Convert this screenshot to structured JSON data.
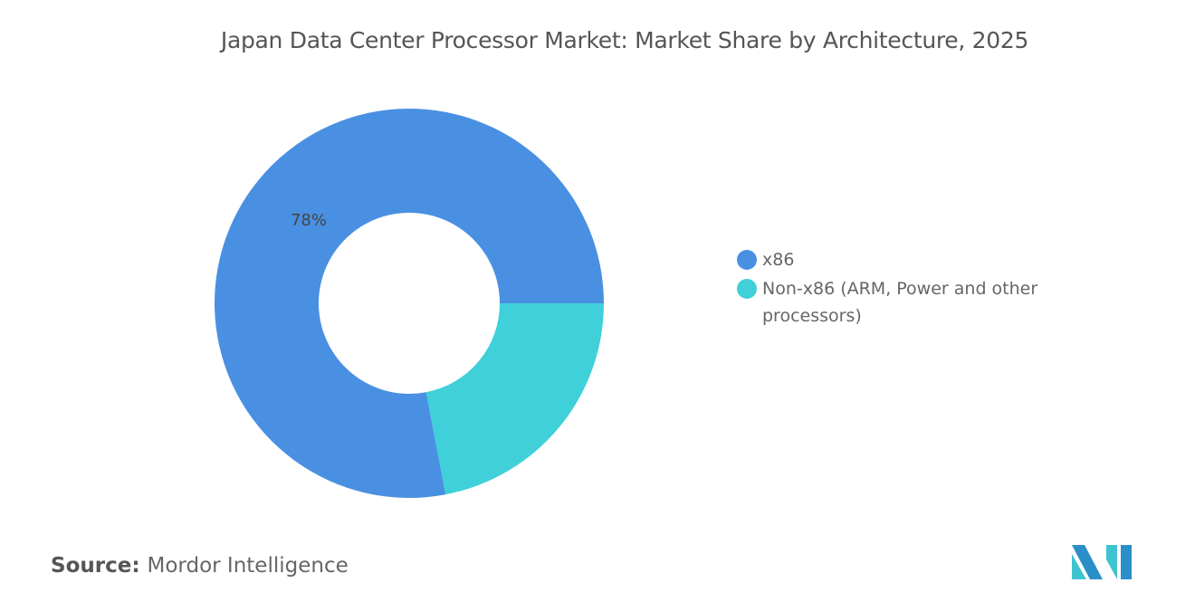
{
  "chart_data": {
    "type": "pie",
    "style": "donut",
    "title": "Japan Data Center Processor Market: Market Share by Architecture, 2025",
    "categories": [
      "x86",
      "Non-x86 (ARM, Power and other processors)"
    ],
    "values": [
      78,
      22
    ],
    "unit": "%",
    "colors": [
      "#4a90e2",
      "#3fd0d9"
    ],
    "data_labels": [
      "78%",
      ""
    ],
    "legend_placement": "right"
  },
  "source": {
    "label": "Source:",
    "value": "Mordor Intelligence"
  },
  "logo": {
    "name": "mordor-intelligence-logo",
    "colors": [
      "#2a8fc9",
      "#3fc4cf"
    ]
  }
}
